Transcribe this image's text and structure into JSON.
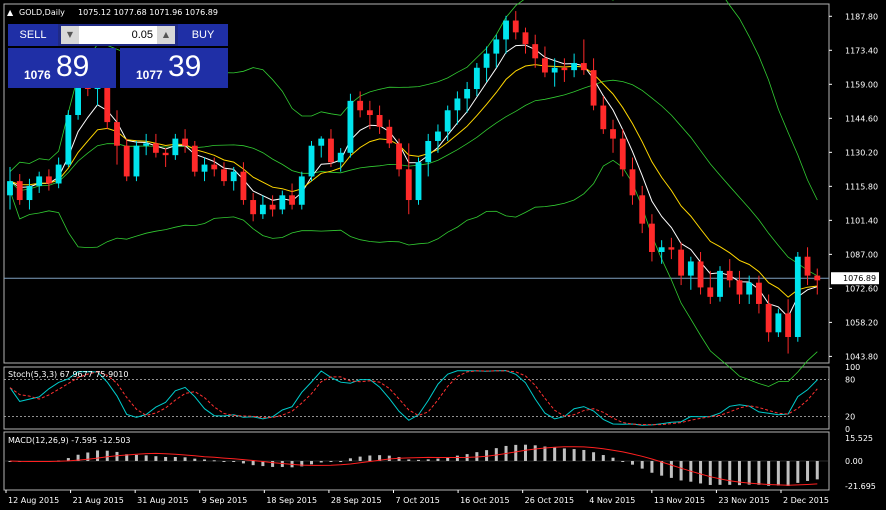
{
  "header": {
    "symbol_label": "GOLD,Daily",
    "ohlc_label": "1075.12 1077.68 1071.96 1076.89"
  },
  "trade_panel": {
    "sell_label": "SELL",
    "buy_label": "BUY",
    "lot_value": "0.05",
    "bid_small": "1076",
    "bid_big": "89",
    "ask_small": "1077",
    "ask_big": "39"
  },
  "stoch_label": "Stoch(5,3,3) 67.9677 75.9010",
  "macd_label": "MACD(12,26,9) -7.595 -12.503",
  "colors": {
    "background": "#000000",
    "bull_candle": "#00e5ee",
    "bear_candle": "#ff2a2a",
    "bollinger": "#32cd32",
    "fast_ma": "#ffffff",
    "slow_ma": "#ffd700",
    "stoch_main": "#00cccc",
    "stoch_signal": "#ff3030",
    "macd_hist": "#c0c0c0",
    "macd_signal": "#ff2020",
    "trade_button": "#1f2fa6"
  },
  "chart_data": {
    "type": "candlestick",
    "price_axis": {
      "ticks": [
        "1187.80",
        "1173.40",
        "1159.00",
        "1144.60",
        "1130.20",
        "1115.80",
        "1101.40",
        "1087.00",
        "1072.60",
        "1058.20",
        "1043.80"
      ],
      "range": [
        1041,
        1193
      ],
      "current_price": "1076.89"
    },
    "date_axis": [
      "12 Aug 2015",
      "21 Aug 2015",
      "31 Aug 2015",
      "9 Sep 2015",
      "18 Sep 2015",
      "28 Sep 2015",
      "7 Oct 2015",
      "16 Oct 2015",
      "26 Oct 2015",
      "4 Nov 2015",
      "13 Nov 2015",
      "23 Nov 2015",
      "2 Dec 2015"
    ],
    "candles": [
      [
        1112,
        1124,
        1106,
        1118
      ],
      [
        1118,
        1121,
        1108,
        1110
      ],
      [
        1110,
        1119,
        1106,
        1116
      ],
      [
        1116,
        1122,
        1113,
        1120
      ],
      [
        1120,
        1123,
        1114,
        1117
      ],
      [
        1117,
        1128,
        1115,
        1125
      ],
      [
        1125,
        1148,
        1124,
        1146
      ],
      [
        1146,
        1162,
        1144,
        1160
      ],
      [
        1160,
        1164,
        1154,
        1157
      ],
      [
        1157,
        1163,
        1150,
        1161
      ],
      [
        1161,
        1165,
        1140,
        1143
      ],
      [
        1143,
        1148,
        1125,
        1133
      ],
      [
        1133,
        1136,
        1118,
        1120
      ],
      [
        1120,
        1135,
        1118,
        1133
      ],
      [
        1133,
        1138,
        1129,
        1134
      ],
      [
        1134,
        1138,
        1128,
        1130
      ],
      [
        1130,
        1132,
        1124,
        1129
      ],
      [
        1129,
        1138,
        1127,
        1136
      ],
      [
        1136,
        1140,
        1130,
        1133
      ],
      [
        1133,
        1135,
        1120,
        1122
      ],
      [
        1122,
        1128,
        1118,
        1125
      ],
      [
        1125,
        1128,
        1120,
        1123
      ],
      [
        1123,
        1126,
        1116,
        1118
      ],
      [
        1118,
        1124,
        1114,
        1122
      ],
      [
        1122,
        1126,
        1108,
        1110
      ],
      [
        1110,
        1113,
        1101,
        1104
      ],
      [
        1104,
        1112,
        1102,
        1108
      ],
      [
        1108,
        1112,
        1103,
        1106
      ],
      [
        1106,
        1114,
        1104,
        1112
      ],
      [
        1112,
        1117,
        1106,
        1108
      ],
      [
        1108,
        1122,
        1106,
        1120
      ],
      [
        1120,
        1135,
        1118,
        1133
      ],
      [
        1133,
        1137,
        1128,
        1136
      ],
      [
        1136,
        1140,
        1124,
        1126
      ],
      [
        1126,
        1132,
        1122,
        1130
      ],
      [
        1130,
        1155,
        1128,
        1152
      ],
      [
        1152,
        1156,
        1145,
        1148
      ],
      [
        1148,
        1152,
        1140,
        1146
      ],
      [
        1146,
        1150,
        1138,
        1141
      ],
      [
        1141,
        1144,
        1132,
        1134
      ],
      [
        1134,
        1136,
        1120,
        1123
      ],
      [
        1123,
        1134,
        1104,
        1110
      ],
      [
        1110,
        1128,
        1108,
        1126
      ],
      [
        1126,
        1138,
        1120,
        1135
      ],
      [
        1135,
        1142,
        1130,
        1139
      ],
      [
        1139,
        1150,
        1135,
        1148
      ],
      [
        1148,
        1156,
        1142,
        1153
      ],
      [
        1153,
        1160,
        1147,
        1157
      ],
      [
        1157,
        1168,
        1154,
        1166
      ],
      [
        1166,
        1175,
        1160,
        1172
      ],
      [
        1172,
        1180,
        1166,
        1178
      ],
      [
        1178,
        1188,
        1172,
        1186
      ],
      [
        1186,
        1190,
        1178,
        1181
      ],
      [
        1181,
        1183,
        1172,
        1176
      ],
      [
        1176,
        1180,
        1166,
        1170
      ],
      [
        1170,
        1175,
        1162,
        1164
      ],
      [
        1164,
        1170,
        1158,
        1166
      ],
      [
        1166,
        1170,
        1160,
        1165
      ],
      [
        1165,
        1172,
        1162,
        1168
      ],
      [
        1168,
        1178,
        1163,
        1165
      ],
      [
        1165,
        1170,
        1148,
        1150
      ],
      [
        1150,
        1154,
        1138,
        1140
      ],
      [
        1140,
        1144,
        1130,
        1136
      ],
      [
        1136,
        1140,
        1120,
        1123
      ],
      [
        1123,
        1128,
        1108,
        1112
      ],
      [
        1112,
        1116,
        1096,
        1100
      ],
      [
        1100,
        1104,
        1084,
        1088
      ],
      [
        1088,
        1093,
        1083,
        1090
      ],
      [
        1090,
        1094,
        1085,
        1089
      ],
      [
        1089,
        1092,
        1074,
        1078
      ],
      [
        1078,
        1086,
        1072,
        1084
      ],
      [
        1084,
        1088,
        1070,
        1073
      ],
      [
        1073,
        1080,
        1066,
        1069
      ],
      [
        1069,
        1082,
        1067,
        1080
      ],
      [
        1080,
        1085,
        1073,
        1076
      ],
      [
        1076,
        1080,
        1066,
        1070
      ],
      [
        1070,
        1078,
        1066,
        1075
      ],
      [
        1075,
        1078,
        1062,
        1066
      ],
      [
        1066,
        1070,
        1050,
        1054
      ],
      [
        1054,
        1064,
        1052,
        1062
      ],
      [
        1062,
        1068,
        1045,
        1052
      ],
      [
        1052,
        1088,
        1050,
        1086
      ],
      [
        1086,
        1090,
        1074,
        1078
      ],
      [
        1078,
        1081,
        1070,
        1076
      ]
    ],
    "stochastic": {
      "label": "Stoch(5,3,3)",
      "main": 67.9677,
      "signal": 75.901,
      "levels": [
        80,
        20
      ],
      "ticks": [
        "100",
        "80",
        "20",
        "0"
      ]
    },
    "macd": {
      "label": "MACD(12,26,9)",
      "main": -7.595,
      "signal": -12.503,
      "ticks": [
        "15.525",
        "0.00",
        "-21.695"
      ]
    }
  }
}
